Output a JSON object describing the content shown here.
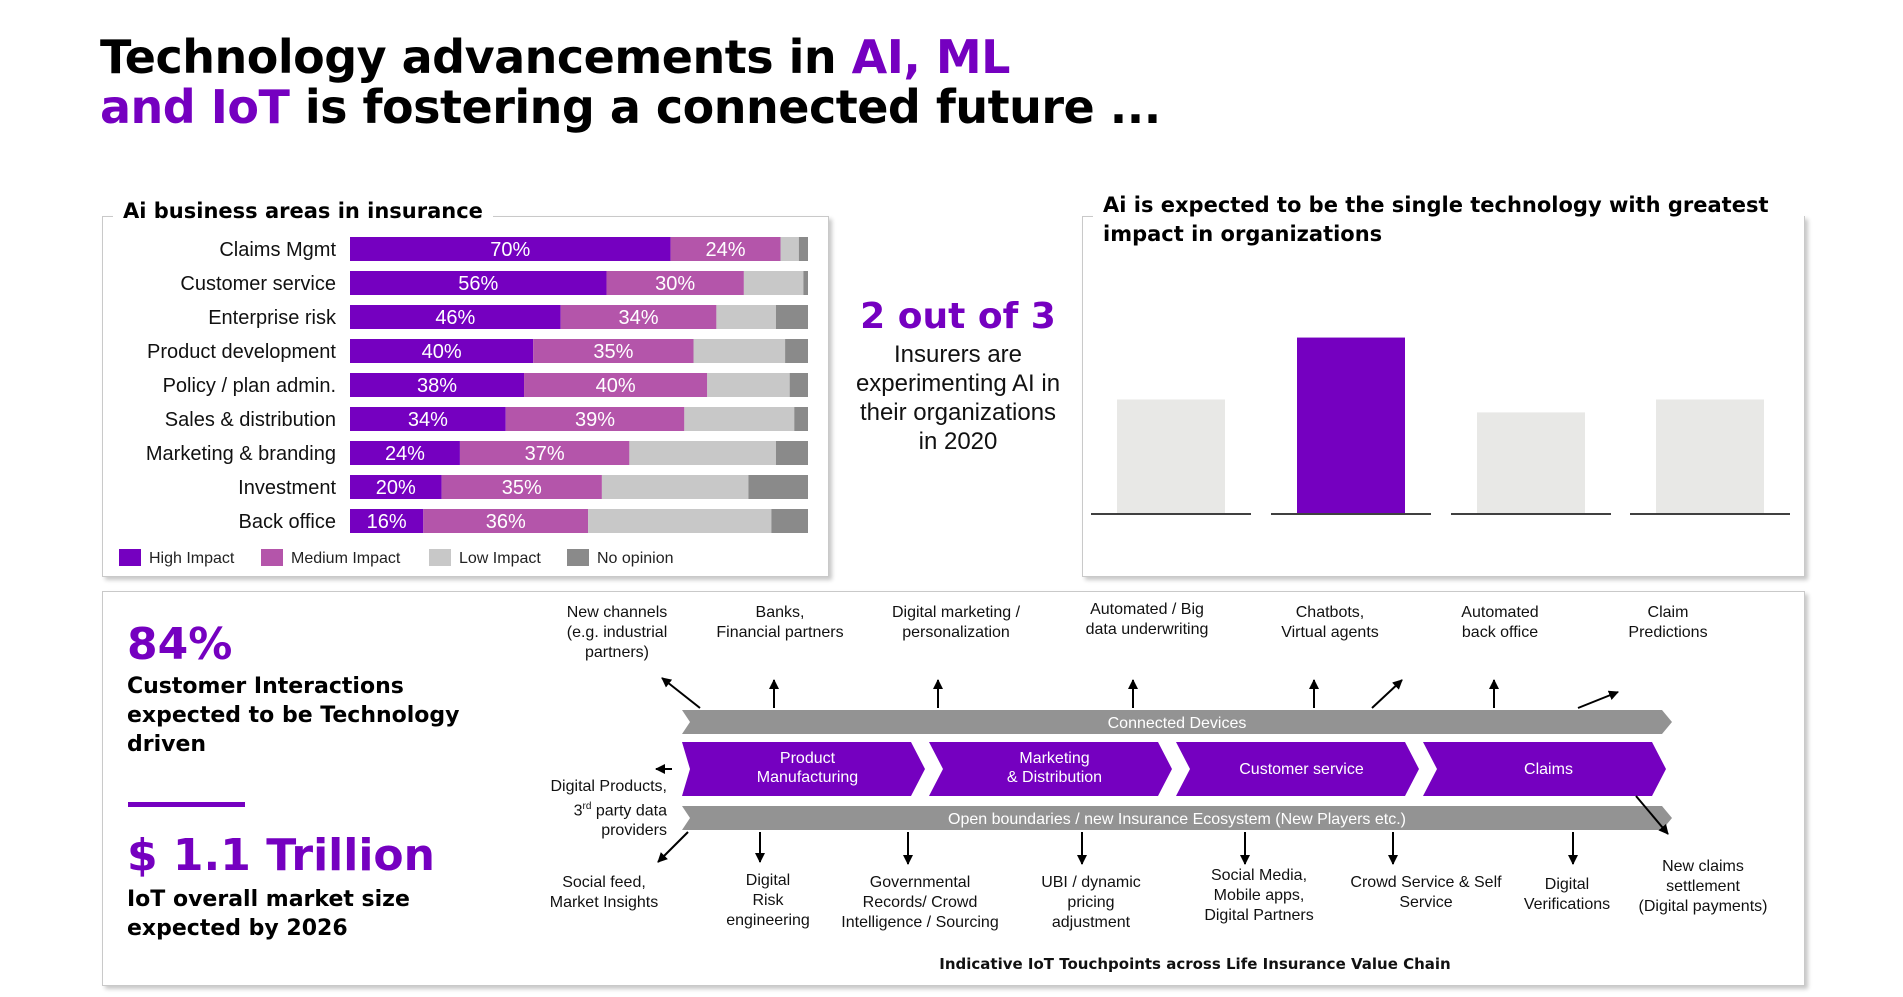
{
  "header": {
    "title_line1_plain": "Technology advancements in ",
    "title_line1_accent": "AI, ML",
    "title_line2_accent": "and IoT",
    "title_line2_plain": " is fostering a connected future ..."
  },
  "colors": {
    "accent": "#7500c0",
    "high_impact": "#7500c0",
    "medium_impact": "#b455aa",
    "low_impact": "#c8c8c8",
    "no_opinion": "#8a8a8a",
    "light_bar": "#e8e8e6",
    "chain_gray": "#939393"
  },
  "chart_data": [
    {
      "type": "bar",
      "orientation": "horizontal",
      "stacked": true,
      "title": "Ai business areas in insurance",
      "categories": [
        "Claims Mgmt",
        "Customer service",
        "Enterprise risk",
        "Product development",
        "Policy / plan admin.",
        "Sales & distribution",
        "Marketing & branding",
        "Investment",
        "Back office"
      ],
      "series": [
        {
          "name": "High Impact",
          "values": [
            70,
            56,
            46,
            40,
            38,
            34,
            24,
            20,
            16
          ],
          "labels": [
            "70%",
            "56%",
            "46%",
            "40%",
            "38%",
            "34%",
            "24%",
            "20%",
            "16%"
          ]
        },
        {
          "name": "Medium Impact",
          "values": [
            24,
            30,
            34,
            35,
            40,
            39,
            37,
            35,
            36
          ],
          "labels": [
            "24%",
            "30%",
            "34%",
            "35%",
            "40%",
            "39%",
            "37%",
            "35%",
            "36%"
          ]
        },
        {
          "name": "Low Impact",
          "values": [
            4,
            13,
            13,
            20,
            18,
            24,
            32,
            32,
            40
          ]
        },
        {
          "name": "No opinion",
          "values": [
            2,
            1,
            7,
            5,
            4,
            3,
            7,
            13,
            8
          ]
        }
      ],
      "xlim": [
        0,
        100
      ],
      "legend_position": "bottom"
    },
    {
      "type": "bar",
      "title": "Ai is expected to be the single technology with greatest impact in organizations",
      "categories": [
        "",
        "",
        "",
        ""
      ],
      "values": [
        44,
        68,
        39,
        44
      ],
      "highlight_index": 1,
      "ylim": [
        0,
        100
      ]
    }
  ],
  "center_stat": {
    "headline": "2 out of 3",
    "text": "Insurers are experimenting AI in their organizations in 2020"
  },
  "left_stats": {
    "stat1_value": "84%",
    "stat1_label": "Customer Interactions expected to be Technology driven",
    "stat2_value": "$ 1.1 Trillion",
    "stat2_label": "IoT overall market size expected by 2026"
  },
  "value_chain": {
    "top_band": "Connected Devices",
    "bottom_band": "Open boundaries / new Insurance Ecosystem (New Players etc.)",
    "stages": [
      {
        "line1": "Product",
        "line2": "Manufacturing"
      },
      {
        "line1": "Marketing",
        "line2": "& Distribution"
      },
      {
        "line1": "Customer service",
        "line2": ""
      },
      {
        "line1": "Claims",
        "line2": ""
      }
    ],
    "left_input": {
      "line1": "Digital Products,",
      "line2_base": "3",
      "line2_sup": "rd",
      "line2_rest": " party data",
      "line3": "providers"
    },
    "top_touchpoints": [
      {
        "line1": "New channels",
        "line2": "(e.g. industrial",
        "line3": "partners)"
      },
      {
        "line1": "Banks,",
        "line2": "Financial partners",
        "line3": ""
      },
      {
        "line1": "Digital marketing /",
        "line2": "personalization",
        "line3": ""
      },
      {
        "line1": "Automated / Big",
        "line2": "data underwriting",
        "line3": ""
      },
      {
        "line1": "Chatbots,",
        "line2": "Virtual agents",
        "line3": ""
      },
      {
        "line1": "Automated",
        "line2": "back office",
        "line3": ""
      },
      {
        "line1": "Claim",
        "line2": "Predictions",
        "line3": ""
      }
    ],
    "bottom_touchpoints": [
      {
        "line1": "Social feed,",
        "line2": "Market Insights",
        "line3": ""
      },
      {
        "line1": "Digital",
        "line2": "Risk",
        "line3": "engineering"
      },
      {
        "line1": "Governmental",
        "line2": "Records/ Crowd",
        "line3": "Intelligence / Sourcing"
      },
      {
        "line1": "UBI / dynamic",
        "line2": "pricing",
        "line3": "adjustment"
      },
      {
        "line1": "Social Media,",
        "line2": "Mobile apps,",
        "line3": "Digital Partners"
      },
      {
        "line1": "Crowd Service & Self",
        "line2": "Service",
        "line3": ""
      },
      {
        "line1": "Digital",
        "line2": "Verifications",
        "line3": ""
      },
      {
        "line1": "New claims",
        "line2": "settlement",
        "line3": "(Digital payments)"
      }
    ],
    "caption": "Indicative IoT Touchpoints across Life Insurance Value Chain"
  }
}
